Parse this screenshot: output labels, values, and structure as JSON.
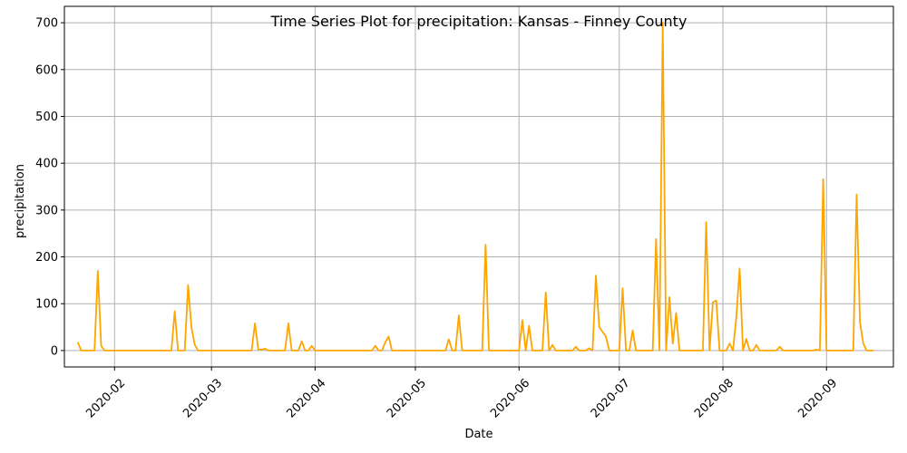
{
  "chart_data": {
    "type": "line",
    "title": "Time Series Plot for precipitation: Kansas - Finney County",
    "xlabel": "Date",
    "ylabel": "precipitation",
    "grid": true,
    "line_color": "#FFA500",
    "x_tick_labels": [
      "2020-02",
      "2020-03",
      "2020-04",
      "2020-05",
      "2020-06",
      "2020-07",
      "2020-08",
      "2020-09"
    ],
    "x_tick_dates": [
      "2020-02-01",
      "2020-03-01",
      "2020-04-01",
      "2020-05-01",
      "2020-06-01",
      "2020-07-01",
      "2020-08-01",
      "2020-09-01"
    ],
    "y_tick_labels": [
      "0",
      "100",
      "200",
      "300",
      "400",
      "500",
      "600",
      "700"
    ],
    "y_ticks": [
      0,
      100,
      200,
      300,
      400,
      500,
      600,
      700
    ],
    "xlim": [
      "2020-01-17",
      "2020-09-21"
    ],
    "ylim": [
      -35,
      735
    ],
    "series": [
      {
        "x": [
          "2020-01-21",
          "2020-01-22",
          "2020-01-26",
          "2020-01-27",
          "2020-01-28",
          "2020-01-29",
          "2020-01-30",
          "2020-02-18",
          "2020-02-19",
          "2020-02-20",
          "2020-02-22",
          "2020-02-23",
          "2020-02-24",
          "2020-02-25",
          "2020-02-26",
          "2020-02-27",
          "2020-03-13",
          "2020-03-14",
          "2020-03-15",
          "2020-03-16",
          "2020-03-17",
          "2020-03-23",
          "2020-03-24",
          "2020-03-25",
          "2020-03-27",
          "2020-03-28",
          "2020-03-30",
          "2020-03-31",
          "2020-04-18",
          "2020-04-19",
          "2020-04-21",
          "2020-04-22",
          "2020-04-23",
          "2020-05-10",
          "2020-05-11",
          "2020-05-13",
          "2020-05-14",
          "2020-05-15",
          "2020-05-21",
          "2020-05-22",
          "2020-06-01",
          "2020-06-02",
          "2020-06-03",
          "2020-06-04",
          "2020-06-05",
          "2020-06-08",
          "2020-06-09",
          "2020-06-10",
          "2020-06-11",
          "2020-06-17",
          "2020-06-18",
          "2020-06-20",
          "2020-06-22",
          "2020-06-23",
          "2020-06-24",
          "2020-06-25",
          "2020-06-26",
          "2020-06-27",
          "2020-06-28",
          "2020-07-01",
          "2020-07-02",
          "2020-07-03",
          "2020-07-05",
          "2020-07-06",
          "2020-07-11",
          "2020-07-12",
          "2020-07-13",
          "2020-07-14",
          "2020-07-15",
          "2020-07-16",
          "2020-07-17",
          "2020-07-18",
          "2020-07-19",
          "2020-07-25",
          "2020-07-26",
          "2020-07-27",
          "2020-07-28",
          "2020-07-29",
          "2020-07-30",
          "2020-08-01",
          "2020-08-02",
          "2020-08-03",
          "2020-08-04",
          "2020-08-05",
          "2020-08-06",
          "2020-08-08",
          "2020-08-10",
          "2020-08-11",
          "2020-08-15",
          "2020-08-16",
          "2020-08-18",
          "2020-08-19",
          "2020-08-20",
          "2020-08-29",
          "2020-08-30",
          "2020-08-31",
          "2020-09-08",
          "2020-09-09",
          "2020-09-10",
          "2020-09-11",
          "2020-09-12",
          "2020-09-15"
        ],
        "values": [
          18,
          0,
          0,
          170,
          10,
          0,
          0,
          0,
          84,
          0,
          0,
          140,
          50,
          12,
          0,
          0,
          0,
          58,
          2,
          2,
          4,
          0,
          58,
          0,
          0,
          20,
          0,
          10,
          0,
          10,
          0,
          18,
          30,
          0,
          24,
          0,
          75,
          0,
          0,
          226,
          0,
          65,
          0,
          53,
          0,
          0,
          124,
          0,
          12,
          0,
          8,
          0,
          5,
          0,
          160,
          50,
          40,
          30,
          0,
          0,
          133,
          0,
          43,
          0,
          0,
          238,
          0,
          700,
          0,
          114,
          15,
          80,
          0,
          0,
          0,
          274,
          0,
          103,
          107,
          0,
          0,
          15,
          0,
          70,
          175,
          25,
          0,
          12,
          0,
          0,
          8,
          0,
          0,
          2,
          0,
          366,
          0,
          0,
          333,
          60,
          15,
          0
        ]
      }
    ]
  }
}
